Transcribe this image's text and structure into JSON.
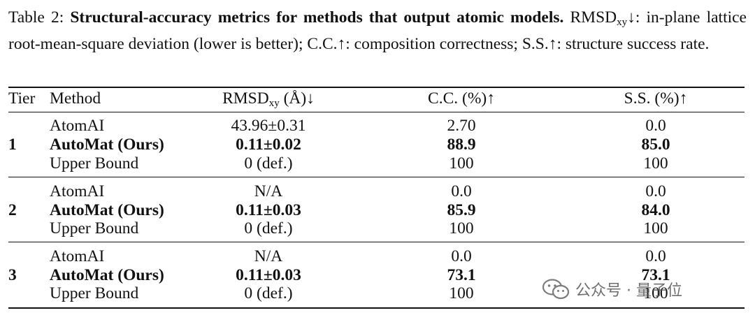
{
  "caption": {
    "label": "Table 2: ",
    "bold": "Structural-accuracy metrics for methods that output atomic models.",
    "rmsd_main": "RMSD",
    "rmsd_sub": "xy",
    "desc_1": "↓: in-plane lattice root-mean-square deviation (lower is better); C.C.↑: composition correctness; S.S.↑: structure success rate."
  },
  "headers": {
    "tier": "Tier",
    "method": "Method",
    "rmsd_main": "RMSD",
    "rmsd_sub": "xy",
    "rmsd_suffix": " (Å)↓",
    "cc": "C.C. (%)↑",
    "ss": "S.S. (%)↑"
  },
  "groups": [
    {
      "tier": "1",
      "rows": [
        {
          "method": "AtomAI",
          "rmsd": "43.96±0.31",
          "cc": "2.70",
          "ss": "0.0",
          "bold": false
        },
        {
          "method": "AutoMat (Ours)",
          "rmsd": "0.11±0.02",
          "cc": "88.9",
          "ss": "85.0",
          "bold": true
        },
        {
          "method": "Upper Bound",
          "rmsd": "0 (def.)",
          "cc": "100",
          "ss": "100",
          "bold": false
        }
      ]
    },
    {
      "tier": "2",
      "rows": [
        {
          "method": "AtomAI",
          "rmsd": "N/A",
          "cc": "0.0",
          "ss": "0.0",
          "bold": false
        },
        {
          "method": "AutoMat (Ours)",
          "rmsd": "0.11±0.03",
          "cc": "85.9",
          "ss": "84.0",
          "bold": true
        },
        {
          "method": "Upper Bound",
          "rmsd": "0 (def.)",
          "cc": "100",
          "ss": "100",
          "bold": false
        }
      ]
    },
    {
      "tier": "3",
      "rows": [
        {
          "method": "AtomAI",
          "rmsd": "N/A",
          "cc": "0.0",
          "ss": "0.0",
          "bold": false
        },
        {
          "method": "AutoMat (Ours)",
          "rmsd": "0.11±0.03",
          "cc": "73.1",
          "ss": "73.1",
          "bold": true
        },
        {
          "method": "Upper Bound",
          "rmsd": "0 (def.)",
          "cc": "100",
          "ss": "100",
          "bold": false
        }
      ]
    }
  ],
  "watermark": {
    "text": "公众号 · 量子位",
    "icon": "wechat-icon"
  }
}
